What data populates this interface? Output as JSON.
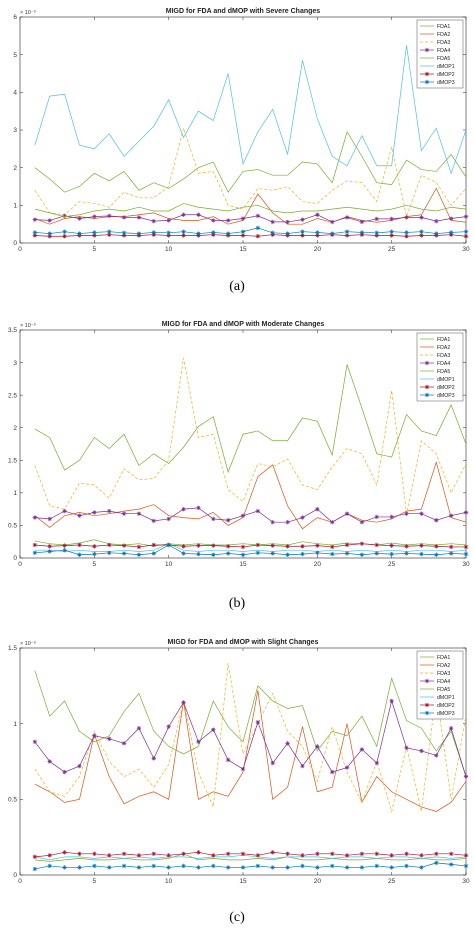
{
  "series_styles": [
    {
      "name": "FDA1",
      "color": "#77AC30",
      "dash": "solid",
      "marker": "none"
    },
    {
      "name": "FDA2",
      "color": "#D95319",
      "dash": "solid",
      "marker": "none"
    },
    {
      "name": "FDA3",
      "color": "#EDB120",
      "dash": "dashed",
      "marker": "none"
    },
    {
      "name": "FDA4",
      "color": "#7E2F8E",
      "dash": "solid",
      "marker": "star"
    },
    {
      "name": "FDA5",
      "color": "#77AC30",
      "dash": "solid",
      "marker": "none"
    },
    {
      "name": "dMOP1",
      "color": "#4DBEEE",
      "dash": "solid",
      "marker": "none"
    },
    {
      "name": "dMOP2",
      "color": "#A2142F",
      "dash": "solid",
      "marker": "star"
    },
    {
      "name": "dMOP3",
      "color": "#0072BD",
      "dash": "solid",
      "marker": "star"
    }
  ],
  "chart_data": [
    {
      "type": "line",
      "caption": "(a)",
      "title": "MIGD for FDA and dMOP with Severe Changes",
      "exponent_label": "× 10⁻³",
      "xlabel": "",
      "ylabel": "",
      "xlim": [
        0,
        30
      ],
      "ylim": [
        0,
        6
      ],
      "xticks": [
        0,
        5,
        10,
        15,
        20,
        25,
        30
      ],
      "yticks": [
        0,
        1,
        2,
        3,
        4,
        5,
        6
      ],
      "legend_position": "top-right",
      "grid": false,
      "x": [
        1,
        2,
        3,
        4,
        5,
        6,
        7,
        8,
        9,
        10,
        11,
        12,
        13,
        14,
        15,
        16,
        17,
        18,
        19,
        20,
        21,
        22,
        23,
        24,
        25,
        26,
        27,
        28,
        29,
        30
      ],
      "series": [
        {
          "name": "FDA1",
          "values": [
            2.0,
            1.7,
            1.35,
            1.5,
            1.85,
            1.65,
            1.9,
            1.4,
            1.6,
            1.45,
            1.7,
            2.0,
            2.15,
            1.35,
            1.9,
            1.95,
            1.8,
            1.8,
            2.15,
            2.1,
            1.6,
            2.95,
            2.3,
            1.6,
            1.55,
            2.2,
            1.95,
            1.9,
            2.35,
            1.75
          ]
        },
        {
          "name": "FDA2",
          "values": [
            0.65,
            0.5,
            0.65,
            0.7,
            0.65,
            0.7,
            0.7,
            0.75,
            0.8,
            0.65,
            0.6,
            0.6,
            0.7,
            0.5,
            0.6,
            1.3,
            0.8,
            0.5,
            0.5,
            0.65,
            0.55,
            0.7,
            0.6,
            0.55,
            0.6,
            0.7,
            0.75,
            1.45,
            0.6,
            0.55
          ]
        },
        {
          "name": "FDA3",
          "values": [
            1.4,
            0.8,
            0.75,
            1.1,
            1.05,
            0.95,
            1.35,
            1.2,
            1.2,
            1.5,
            3.05,
            1.85,
            1.9,
            1.0,
            0.9,
            1.45,
            1.4,
            1.5,
            1.1,
            1.05,
            1.4,
            1.65,
            1.6,
            1.1,
            2.55,
            0.7,
            1.8,
            1.6,
            1.0,
            1.45
          ]
        },
        {
          "name": "FDA4",
          "values": [
            0.62,
            0.6,
            0.72,
            0.65,
            0.7,
            0.72,
            0.68,
            0.68,
            0.58,
            0.6,
            0.75,
            0.75,
            0.6,
            0.6,
            0.65,
            0.72,
            0.56,
            0.56,
            0.62,
            0.75,
            0.56,
            0.68,
            0.56,
            0.64,
            0.64,
            0.68,
            0.68,
            0.58,
            0.65,
            0.7
          ]
        },
        {
          "name": "FDA5",
          "values": [
            0.9,
            0.8,
            0.7,
            0.75,
            0.85,
            0.9,
            0.85,
            0.95,
            0.85,
            0.85,
            1.05,
            0.95,
            0.9,
            0.85,
            0.95,
            1.0,
            0.85,
            0.8,
            0.85,
            0.85,
            0.9,
            0.95,
            0.9,
            0.85,
            0.9,
            1.0,
            0.9,
            0.85,
            0.95,
            0.9
          ]
        },
        {
          "name": "dMOP1",
          "values": [
            2.6,
            3.9,
            3.95,
            2.6,
            2.5,
            2.9,
            2.3,
            2.7,
            3.1,
            3.8,
            2.8,
            3.5,
            3.25,
            4.5,
            2.1,
            2.95,
            3.55,
            2.35,
            4.85,
            3.3,
            2.3,
            2.05,
            2.85,
            2.05,
            2.05,
            5.25,
            2.45,
            3.05,
            1.85,
            3.0
          ]
        },
        {
          "name": "dMOP2",
          "values": [
            0.2,
            0.18,
            0.18,
            0.2,
            0.2,
            0.22,
            0.2,
            0.2,
            0.22,
            0.2,
            0.2,
            0.2,
            0.22,
            0.2,
            0.2,
            0.18,
            0.22,
            0.2,
            0.2,
            0.2,
            0.22,
            0.2,
            0.22,
            0.2,
            0.2,
            0.18,
            0.2,
            0.2,
            0.22,
            0.18
          ]
        },
        {
          "name": "dMOP3",
          "values": [
            0.28,
            0.25,
            0.3,
            0.25,
            0.28,
            0.3,
            0.27,
            0.25,
            0.28,
            0.27,
            0.3,
            0.25,
            0.28,
            0.25,
            0.3,
            0.4,
            0.27,
            0.25,
            0.3,
            0.28,
            0.25,
            0.3,
            0.28,
            0.27,
            0.3,
            0.28,
            0.3,
            0.25,
            0.28,
            0.3
          ]
        }
      ]
    },
    {
      "type": "line",
      "caption": "(b)",
      "title": "MIGD for FDA and dMOP with Moderate Changes",
      "exponent_label": "× 10⁻³",
      "xlabel": "",
      "ylabel": "",
      "xlim": [
        0,
        30
      ],
      "ylim": [
        0,
        3.5
      ],
      "xticks": [
        0,
        5,
        10,
        15,
        20,
        25,
        30
      ],
      "yticks": [
        0,
        0.5,
        1,
        1.5,
        2,
        2.5,
        3,
        3.5
      ],
      "legend_position": "top-right",
      "grid": false,
      "x": [
        1,
        2,
        3,
        4,
        5,
        6,
        7,
        8,
        9,
        10,
        11,
        12,
        13,
        14,
        15,
        16,
        17,
        18,
        19,
        20,
        21,
        22,
        23,
        24,
        25,
        26,
        27,
        28,
        29,
        30
      ],
      "series": [
        {
          "name": "FDA1",
          "values": [
            1.98,
            1.85,
            1.35,
            1.5,
            1.85,
            1.68,
            1.9,
            1.42,
            1.6,
            1.45,
            1.7,
            2.02,
            2.17,
            1.32,
            1.9,
            1.95,
            1.8,
            1.8,
            2.15,
            2.1,
            1.58,
            2.97,
            2.3,
            1.6,
            1.55,
            2.2,
            1.95,
            1.88,
            2.35,
            1.75
          ]
        },
        {
          "name": "FDA2",
          "values": [
            0.65,
            0.47,
            0.65,
            0.7,
            0.65,
            0.68,
            0.72,
            0.75,
            0.82,
            0.65,
            0.62,
            0.6,
            0.7,
            0.5,
            0.62,
            1.25,
            1.43,
            0.8,
            0.45,
            0.62,
            0.55,
            0.68,
            0.58,
            0.55,
            0.6,
            0.72,
            0.75,
            1.47,
            0.62,
            0.55
          ]
        },
        {
          "name": "FDA3",
          "values": [
            1.42,
            0.8,
            0.75,
            1.15,
            1.12,
            0.92,
            1.37,
            1.2,
            1.22,
            1.5,
            3.07,
            1.85,
            1.9,
            1.05,
            0.87,
            1.45,
            1.4,
            1.52,
            1.12,
            1.05,
            1.4,
            1.68,
            1.6,
            1.12,
            2.57,
            0.68,
            1.8,
            1.6,
            1.0,
            1.45
          ]
        },
        {
          "name": "FDA4",
          "values": [
            0.62,
            0.6,
            0.72,
            0.65,
            0.7,
            0.72,
            0.68,
            0.68,
            0.57,
            0.6,
            0.75,
            0.77,
            0.6,
            0.58,
            0.65,
            0.72,
            0.55,
            0.55,
            0.62,
            0.75,
            0.55,
            0.68,
            0.55,
            0.63,
            0.63,
            0.68,
            0.68,
            0.58,
            0.65,
            0.7
          ]
        },
        {
          "name": "FDA5",
          "values": [
            0.26,
            0.22,
            0.2,
            0.23,
            0.28,
            0.22,
            0.2,
            0.22,
            0.18,
            0.22,
            0.2,
            0.22,
            0.2,
            0.2,
            0.22,
            0.2,
            0.22,
            0.2,
            0.25,
            0.22,
            0.2,
            0.23,
            0.22,
            0.2,
            0.23,
            0.2,
            0.22,
            0.2,
            0.22,
            0.2
          ]
        },
        {
          "name": "dMOP1",
          "values": [
            0.12,
            0.12,
            0.1,
            0.12,
            0.1,
            0.1,
            0.12,
            0.1,
            0.12,
            0.22,
            0.12,
            0.1,
            0.12,
            0.12,
            0.1,
            0.12,
            0.1,
            0.12,
            0.12,
            0.1,
            0.12,
            0.1,
            0.12,
            0.1,
            0.12,
            0.1,
            0.12,
            0.12,
            0.1,
            0.12
          ]
        },
        {
          "name": "dMOP2",
          "values": [
            0.2,
            0.18,
            0.19,
            0.2,
            0.18,
            0.2,
            0.19,
            0.17,
            0.2,
            0.2,
            0.18,
            0.19,
            0.19,
            0.18,
            0.17,
            0.2,
            0.19,
            0.18,
            0.18,
            0.19,
            0.17,
            0.2,
            0.22,
            0.2,
            0.19,
            0.18,
            0.19,
            0.18,
            0.17,
            0.17
          ]
        },
        {
          "name": "dMOP3",
          "values": [
            0.08,
            0.1,
            0.12,
            0.05,
            0.06,
            0.08,
            0.07,
            0.05,
            0.07,
            0.2,
            0.07,
            0.06,
            0.05,
            0.07,
            0.05,
            0.08,
            0.07,
            0.05,
            0.06,
            0.08,
            0.06,
            0.07,
            0.05,
            0.07,
            0.06,
            0.07,
            0.06,
            0.05,
            0.07,
            0.06
          ]
        }
      ]
    },
    {
      "type": "line",
      "caption": "(c)",
      "title": "MIGD for FDA and dMOP with Slight Changes",
      "exponent_label": "× 10⁻³",
      "xlabel": "",
      "ylabel": "",
      "xlim": [
        0,
        30
      ],
      "ylim": [
        0,
        1.5
      ],
      "xticks": [
        0,
        5,
        10,
        15,
        20,
        25,
        30
      ],
      "yticks": [
        0,
        0.5,
        1,
        1.5
      ],
      "legend_position": "top-right",
      "grid": false,
      "x": [
        1,
        2,
        3,
        4,
        5,
        6,
        7,
        8,
        9,
        10,
        11,
        12,
        13,
        14,
        15,
        16,
        17,
        18,
        19,
        20,
        21,
        22,
        23,
        24,
        25,
        26,
        27,
        28,
        29,
        30
      ],
      "series": [
        {
          "name": "FDA1",
          "values": [
            1.35,
            1.05,
            1.15,
            0.95,
            0.88,
            0.92,
            1.08,
            1.2,
            0.95,
            0.85,
            0.8,
            0.85,
            1.15,
            0.98,
            0.88,
            1.25,
            1.15,
            1.1,
            1.12,
            0.82,
            0.95,
            0.92,
            1.05,
            0.85,
            1.3,
            1.02,
            0.97,
            0.82,
            0.95,
            0.65
          ]
        },
        {
          "name": "FDA2",
          "values": [
            0.6,
            0.55,
            0.48,
            0.5,
            0.93,
            0.65,
            0.47,
            0.52,
            0.55,
            0.5,
            1.15,
            0.5,
            0.55,
            0.52,
            0.68,
            1.22,
            0.5,
            0.58,
            0.98,
            0.55,
            0.58,
            1.0,
            0.48,
            0.65,
            0.55,
            0.5,
            0.45,
            0.42,
            0.48,
            0.62
          ]
        },
        {
          "name": "FDA3",
          "values": [
            0.7,
            0.55,
            0.52,
            0.65,
            0.95,
            0.75,
            0.65,
            0.7,
            0.58,
            0.73,
            1.15,
            0.68,
            0.45,
            1.4,
            0.8,
            1.0,
            1.2,
            0.95,
            0.85,
            0.62,
            0.98,
            0.68,
            0.48,
            0.75,
            0.42,
            0.85,
            0.42,
            1.22,
            0.5,
            1.05
          ]
        },
        {
          "name": "FDA4",
          "values": [
            0.88,
            0.75,
            0.68,
            0.72,
            0.92,
            0.9,
            0.87,
            0.97,
            0.77,
            0.98,
            1.14,
            0.88,
            0.96,
            0.76,
            0.7,
            1.01,
            0.74,
            0.87,
            0.72,
            0.85,
            0.68,
            0.71,
            0.83,
            0.74,
            1.15,
            0.84,
            0.82,
            0.79,
            0.97,
            0.65
          ]
        },
        {
          "name": "FDA5",
          "values": [
            0.1,
            0.09,
            0.1,
            0.11,
            0.1,
            0.1,
            0.11,
            0.1,
            0.1,
            0.11,
            0.14,
            0.1,
            0.11,
            0.1,
            0.1,
            0.11,
            0.1,
            0.12,
            0.1,
            0.1,
            0.11,
            0.1,
            0.1,
            0.11,
            0.1,
            0.1,
            0.11,
            0.1,
            0.1,
            0.11
          ]
        },
        {
          "name": "dMOP1",
          "values": [
            0.12,
            0.1,
            0.12,
            0.12,
            0.11,
            0.12,
            0.11,
            0.12,
            0.11,
            0.12,
            0.12,
            0.11,
            0.12,
            0.12,
            0.13,
            0.12,
            0.11,
            0.12,
            0.12,
            0.12,
            0.11,
            0.12,
            0.12,
            0.11,
            0.12,
            0.12,
            0.11,
            0.12,
            0.11,
            0.12
          ]
        },
        {
          "name": "dMOP2",
          "values": [
            0.12,
            0.13,
            0.15,
            0.14,
            0.14,
            0.13,
            0.14,
            0.13,
            0.14,
            0.13,
            0.14,
            0.15,
            0.13,
            0.14,
            0.14,
            0.13,
            0.15,
            0.14,
            0.13,
            0.14,
            0.14,
            0.13,
            0.14,
            0.14,
            0.13,
            0.14,
            0.13,
            0.14,
            0.14,
            0.13
          ]
        },
        {
          "name": "dMOP3",
          "values": [
            0.04,
            0.06,
            0.05,
            0.05,
            0.06,
            0.05,
            0.06,
            0.05,
            0.06,
            0.05,
            0.06,
            0.05,
            0.06,
            0.05,
            0.05,
            0.06,
            0.05,
            0.05,
            0.06,
            0.05,
            0.06,
            0.05,
            0.05,
            0.06,
            0.05,
            0.06,
            0.05,
            0.08,
            0.07,
            0.06
          ]
        }
      ]
    }
  ]
}
